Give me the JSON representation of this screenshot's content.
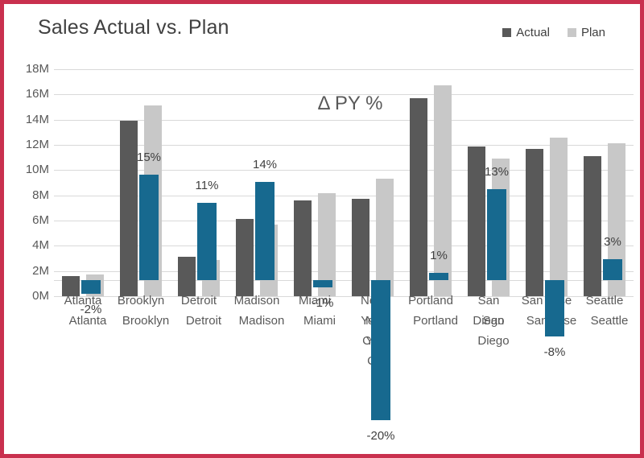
{
  "title": "Sales Actual vs. Plan",
  "overlay_title": "Δ PY %",
  "colors": {
    "frame_border": "#c9304e",
    "actual": "#595959",
    "plan": "#c8c8c8",
    "delta": "#17698f",
    "gridline": "#d9d9d9",
    "title_text": "#404040",
    "axis_text": "#595959",
    "data_label_text": "#404040"
  },
  "legend": {
    "items": [
      {
        "label": "Actual",
        "color": "#595959"
      },
      {
        "label": "Plan",
        "color": "#c8c8c8"
      }
    ]
  },
  "chart_data": {
    "type": "bar",
    "title": "Sales Actual vs. Plan",
    "xlabel": "",
    "ylabel": "",
    "grid": true,
    "legend_position": "top-right",
    "categories": [
      "Atlanta",
      "Brooklyn",
      "Detroit",
      "Madison",
      "Miami",
      "New York City",
      "Portland",
      "San Diego",
      "San Jose",
      "Seattle"
    ],
    "x_label_lines": [
      [
        "Atlanta"
      ],
      [
        "Brooklyn"
      ],
      [
        "Detroit"
      ],
      [
        "Madison"
      ],
      [
        "Miami"
      ],
      [
        "New",
        "York",
        "City"
      ],
      [
        "Portland"
      ],
      [
        "San",
        "Diego"
      ],
      [
        "San Jose"
      ],
      [
        "Seattle"
      ]
    ],
    "x_labels_drawn_twice": true,
    "series": [
      {
        "name": "Actual",
        "axis": "primary",
        "unit": "M",
        "color": "#595959",
        "values": [
          1.6,
          13.9,
          3.1,
          6.1,
          7.6,
          7.7,
          15.7,
          11.9,
          11.7,
          11.1
        ]
      },
      {
        "name": "Plan",
        "axis": "primary",
        "unit": "M",
        "color": "#c8c8c8",
        "values": [
          1.7,
          15.1,
          2.9,
          5.7,
          8.2,
          9.3,
          16.7,
          10.9,
          12.6,
          12.1
        ]
      },
      {
        "name": "Δ PY %",
        "axis": "secondary",
        "unit": "%",
        "color": "#17698f",
        "values": [
          -2,
          15,
          11,
          14,
          -1,
          -20,
          1,
          13,
          -8,
          3
        ],
        "labels": [
          "-2%",
          "15%",
          "11%",
          "14%",
          "-1%",
          "-20%",
          "1%",
          "13%",
          "-8%",
          "3%"
        ]
      }
    ],
    "y_axis": {
      "min": 0,
      "max": 18,
      "step": 2,
      "unit": "M",
      "ticks": [
        "18M",
        "16M",
        "14M",
        "12M",
        "10M",
        "8M",
        "6M",
        "4M",
        "2M",
        "0M"
      ]
    },
    "secondary_axis": {
      "visible": false,
      "unit": "%",
      "approx_range": [
        -25,
        25
      ]
    }
  }
}
